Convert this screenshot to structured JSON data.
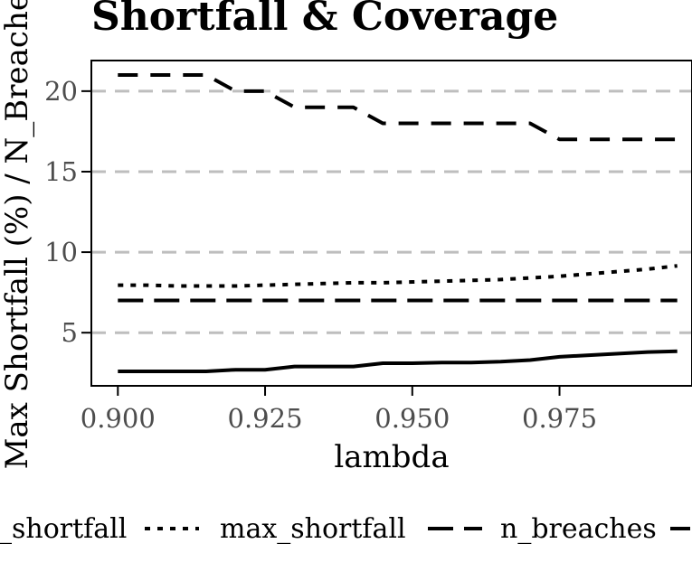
{
  "chart_data": {
    "type": "line",
    "title": "Shortfall & Coverage",
    "xlabel": "lambda",
    "ylabel": "Max Shortfall (%) / N_Breaches",
    "xlim": [
      0.8955,
      0.9975
    ],
    "ylim": [
      1.7,
      21.9
    ],
    "x_ticks": [
      0.9,
      0.925,
      0.95,
      0.975
    ],
    "x_tick_labels": [
      "0.900",
      "0.925",
      "0.950",
      "0.975"
    ],
    "y_ticks": [
      5,
      10,
      15,
      20
    ],
    "y_tick_labels": [
      "5",
      "10",
      "15",
      "20"
    ],
    "grid": "horizontal dashed",
    "legend_position": "bottom",
    "x": [
      0.9,
      0.905,
      0.91,
      0.915,
      0.92,
      0.925,
      0.93,
      0.935,
      0.94,
      0.945,
      0.95,
      0.955,
      0.96,
      0.965,
      0.97,
      0.975,
      0.98,
      0.985,
      0.99,
      0.995
    ],
    "series": [
      {
        "name": "_shortfall",
        "style": "solid",
        "values": [
          2.6,
          2.6,
          2.6,
          2.6,
          2.7,
          2.7,
          2.9,
          2.9,
          2.9,
          3.1,
          3.1,
          3.15,
          3.15,
          3.2,
          3.3,
          3.5,
          3.6,
          3.7,
          3.8,
          3.85
        ]
      },
      {
        "name": "max_shortfall",
        "style": "dotted",
        "values": [
          7.95,
          7.95,
          7.9,
          7.9,
          7.9,
          7.95,
          8.0,
          8.05,
          8.1,
          8.1,
          8.15,
          8.2,
          8.25,
          8.3,
          8.4,
          8.5,
          8.65,
          8.8,
          8.95,
          9.15
        ]
      },
      {
        "name": "n_breaches",
        "style": "longdash",
        "values": [
          7,
          7,
          7,
          7,
          7,
          7,
          7,
          7,
          7,
          7,
          7,
          7,
          7,
          7,
          7,
          7,
          7,
          7,
          7,
          7
        ]
      },
      {
        "name": "",
        "style": "dashed",
        "values": [
          21,
          21,
          21,
          21,
          20,
          20,
          19,
          19,
          19,
          18,
          18,
          18,
          18,
          18,
          18,
          17,
          17,
          17,
          17,
          17
        ]
      }
    ]
  }
}
